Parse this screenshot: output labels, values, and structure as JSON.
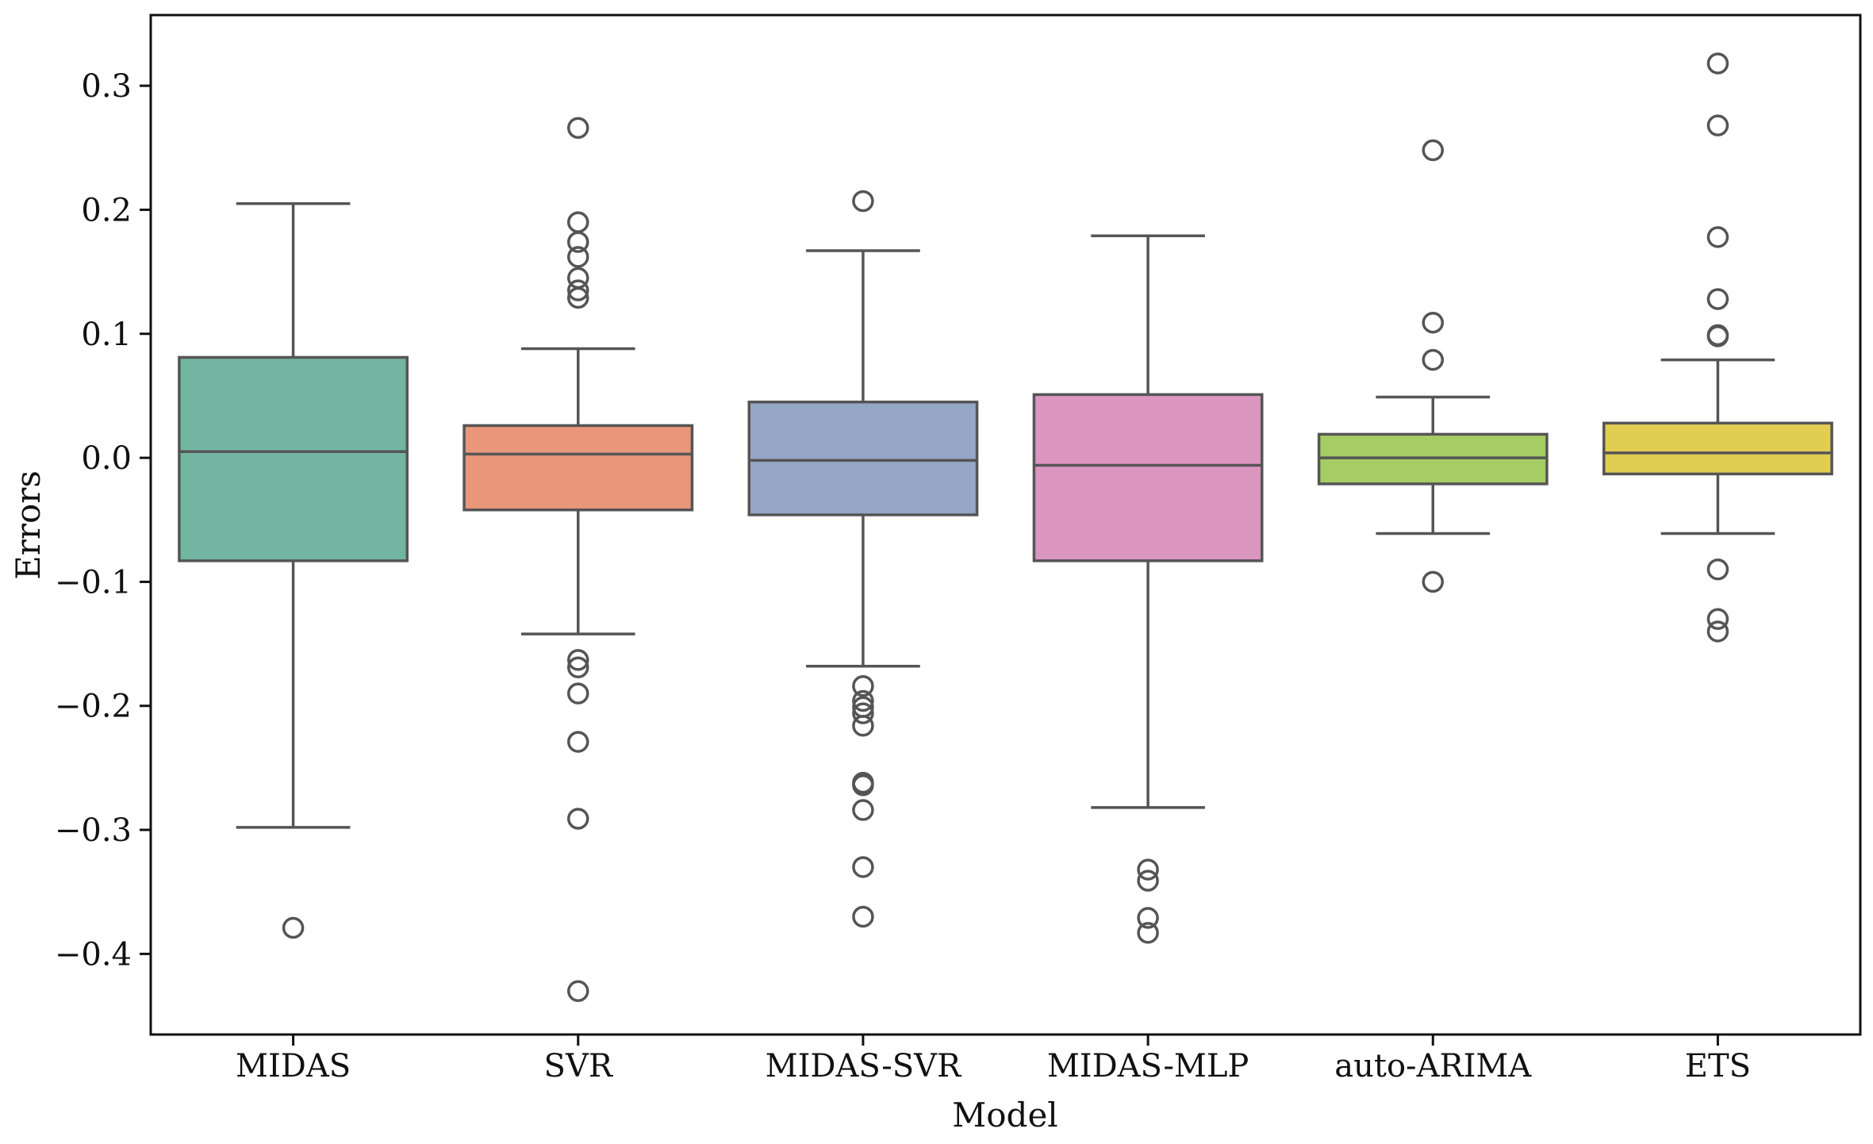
{
  "chart_data": {
    "type": "box",
    "title": "",
    "xlabel": "Model",
    "ylabel": "Errors",
    "ylim": [
      -0.465,
      0.357
    ],
    "yticks": [
      0.3,
      0.2,
      0.1,
      0.0,
      -0.1,
      -0.2,
      -0.3,
      -0.4
    ],
    "ytick_labels": [
      "0.3",
      "0.2",
      "0.1",
      "0.0",
      "−0.1",
      "−0.2",
      "−0.3",
      "−0.4"
    ],
    "grid": false,
    "categories": [
      "MIDAS",
      "SVR",
      "MIDAS-SVR",
      "MIDAS-MLP",
      "auto-ARIMA",
      "ETS"
    ],
    "series": [
      {
        "name": "MIDAS",
        "color": "#72b6a1",
        "whisker_low": -0.298,
        "q1": -0.083,
        "median": 0.005,
        "q3": 0.081,
        "whisker_high": 0.205,
        "outliers": [
          -0.379
        ]
      },
      {
        "name": "SVR",
        "color": "#e9967a",
        "whisker_low": -0.142,
        "q1": -0.042,
        "median": 0.003,
        "q3": 0.026,
        "whisker_high": 0.088,
        "outliers": [
          0.266,
          0.19,
          0.174,
          0.162,
          0.145,
          0.135,
          0.129,
          -0.163,
          -0.169,
          -0.19,
          -0.229,
          -0.291,
          -0.43
        ]
      },
      {
        "name": "MIDAS-SVR",
        "color": "#95a6c7",
        "whisker_low": -0.168,
        "q1": -0.046,
        "median": -0.002,
        "q3": 0.045,
        "whisker_high": 0.167,
        "outliers": [
          0.207,
          -0.184,
          -0.196,
          -0.201,
          -0.206,
          -0.216,
          -0.262,
          -0.264,
          -0.284,
          -0.33,
          -0.37
        ]
      },
      {
        "name": "MIDAS-MLP",
        "color": "#db96c0",
        "whisker_low": -0.282,
        "q1": -0.083,
        "median": -0.006,
        "q3": 0.051,
        "whisker_high": 0.179,
        "outliers": [
          -0.332,
          -0.341,
          -0.371,
          -0.383
        ]
      },
      {
        "name": "auto-ARIMA",
        "color": "#a6cd64",
        "whisker_low": -0.061,
        "q1": -0.021,
        "median": 0.0,
        "q3": 0.019,
        "whisker_high": 0.049,
        "outliers": [
          0.248,
          0.109,
          0.079,
          -0.1
        ]
      },
      {
        "name": "ETS",
        "color": "#e2cd53",
        "whisker_low": -0.061,
        "q1": -0.013,
        "median": 0.004,
        "q3": 0.028,
        "whisker_high": 0.079,
        "outliers": [
          0.318,
          0.268,
          0.178,
          0.128,
          0.099,
          0.098,
          -0.09,
          -0.13,
          -0.14
        ]
      }
    ]
  }
}
